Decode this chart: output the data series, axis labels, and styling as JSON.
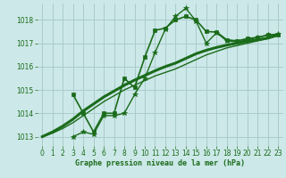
{
  "background_color": "#cce8e8",
  "grid_color": "#aacccc",
  "line_color": "#1a6b1a",
  "xlabel": "Graphe pression niveau de la mer (hPa)",
  "xlim": [
    -0.5,
    23.5
  ],
  "ylim": [
    1012.6,
    1018.7
  ],
  "yticks": [
    1013,
    1014,
    1015,
    1016,
    1017,
    1018
  ],
  "xticks": [
    0,
    1,
    2,
    3,
    4,
    5,
    6,
    7,
    8,
    9,
    10,
    11,
    12,
    13,
    14,
    15,
    16,
    17,
    18,
    19,
    20,
    21,
    22,
    23
  ],
  "series": [
    {
      "x": [
        0,
        1,
        2,
        3,
        4,
        5,
        6,
        7,
        8,
        9,
        10,
        11,
        12,
        13,
        14,
        15,
        16,
        17,
        18,
        19,
        20,
        21,
        22,
        23
      ],
      "y": [
        1013.0,
        1013.15,
        1013.35,
        1013.6,
        1013.9,
        1014.2,
        1014.5,
        1014.75,
        1015.0,
        1015.2,
        1015.4,
        1015.6,
        1015.75,
        1015.9,
        1016.1,
        1016.3,
        1016.5,
        1016.65,
        1016.8,
        1016.9,
        1017.0,
        1017.1,
        1017.2,
        1017.35
      ],
      "linewidth": 1.0,
      "marker": null
    },
    {
      "x": [
        0,
        1,
        2,
        3,
        4,
        5,
        6,
        7,
        8,
        9,
        10,
        11,
        12,
        13,
        14,
        15,
        16,
        17,
        18,
        19,
        20,
        21,
        22,
        23
      ],
      "y": [
        1013.0,
        1013.2,
        1013.45,
        1013.75,
        1014.1,
        1014.4,
        1014.7,
        1014.95,
        1015.2,
        1015.42,
        1015.62,
        1015.82,
        1016.0,
        1016.15,
        1016.35,
        1016.55,
        1016.7,
        1016.82,
        1016.92,
        1017.0,
        1017.08,
        1017.15,
        1017.22,
        1017.35
      ],
      "linewidth": 2.2,
      "marker": null
    },
    {
      "x": [
        3,
        4,
        5,
        6,
        7,
        8,
        9,
        10,
        11,
        12,
        13,
        14,
        15,
        16,
        17,
        18,
        19,
        20,
        21,
        22,
        23
      ],
      "y": [
        1014.8,
        1014.0,
        1013.2,
        1014.0,
        1014.0,
        1015.5,
        1015.1,
        1016.4,
        1017.55,
        1017.65,
        1018.0,
        1018.15,
        1018.0,
        1017.5,
        1017.48,
        1017.15,
        1017.1,
        1017.2,
        1017.25,
        1017.35,
        1017.38
      ],
      "linewidth": 1.2,
      "marker": "s",
      "markersize": 2.5
    },
    {
      "x": [
        3,
        4,
        5,
        6,
        7,
        8,
        9,
        10,
        11,
        12,
        13,
        14,
        15,
        16,
        17,
        18,
        19,
        20,
        21,
        22,
        23
      ],
      "y": [
        1013.0,
        1013.2,
        1013.1,
        1013.9,
        1013.9,
        1014.0,
        1014.8,
        1015.5,
        1016.6,
        1017.6,
        1018.15,
        1018.5,
        1017.95,
        1017.0,
        1017.45,
        1017.1,
        1017.05,
        1017.15,
        1017.25,
        1017.35,
        1017.4
      ],
      "linewidth": 1.0,
      "marker": "*",
      "markersize": 4.0
    }
  ]
}
